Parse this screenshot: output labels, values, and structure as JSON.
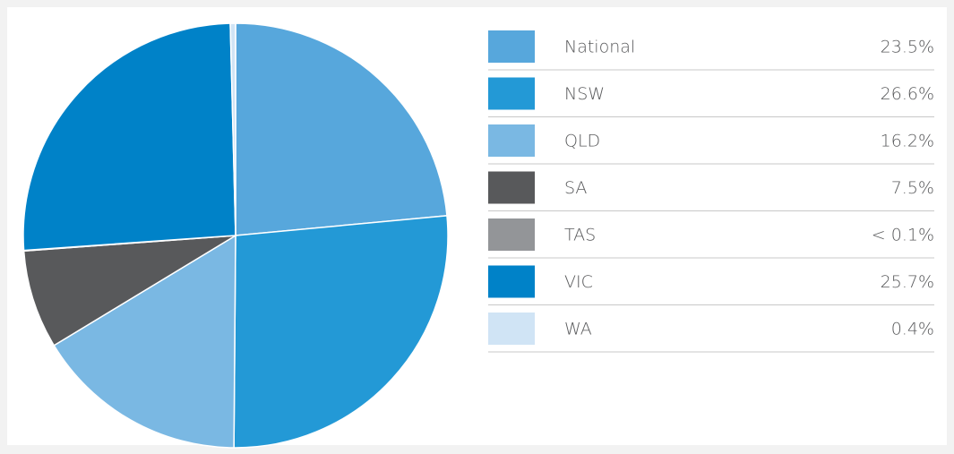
{
  "chart_data": {
    "type": "pie",
    "categories": [
      "National",
      "NSW",
      "QLD",
      "SA",
      "TAS",
      "VIC",
      "WA"
    ],
    "values": [
      23.5,
      26.6,
      16.2,
      7.5,
      0.05,
      25.7,
      0.4
    ],
    "value_labels": [
      "23.5%",
      "26.6%",
      "16.2%",
      "7.5%",
      "< 0.1%",
      "25.7%",
      "0.4%"
    ],
    "colors": [
      "#57a7dc",
      "#2399d6",
      "#7ab8e3",
      "#58595b",
      "#939598",
      "#0082c8",
      "#d0e4f5"
    ],
    "legend": "right"
  }
}
